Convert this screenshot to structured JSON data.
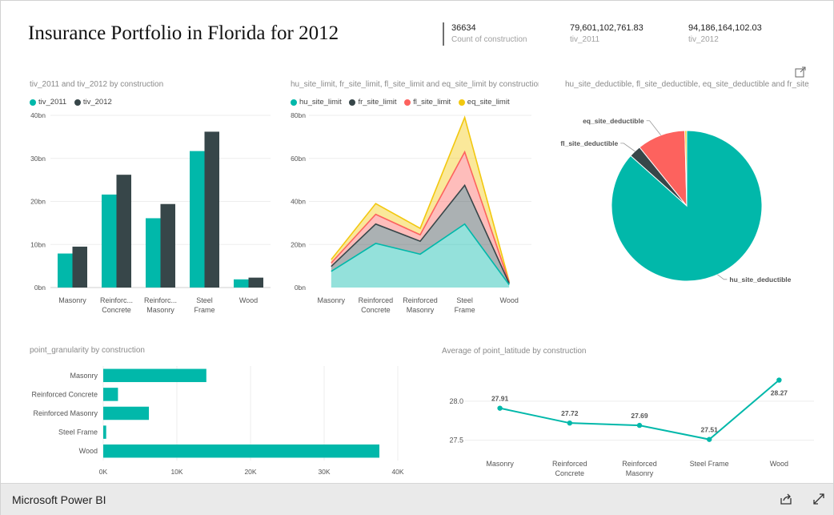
{
  "report": {
    "title": "Insurance Portfolio in Florida for 2012",
    "brand": "Microsoft Power BI"
  },
  "kpis": [
    {
      "value": "36634",
      "label": "Count of construction"
    },
    {
      "value": "79,601,102,761.83",
      "label": "tiv_2011"
    },
    {
      "value": "94,186,164,102.03",
      "label": "tiv_2012"
    }
  ],
  "colors": {
    "teal": "#01B8AA",
    "dark": "#374649",
    "red": "#FD625E",
    "yellow": "#F2C80F"
  },
  "icons": [
    "focus-mode-icon",
    "share-icon",
    "fullscreen-icon"
  ],
  "chart_data": [
    {
      "id": "tiv",
      "type": "bar",
      "title": "tiv_2011 and tiv_2012 by construction",
      "categories": [
        "Masonry",
        "Reinforced Concrete",
        "Reinforced Masonry",
        "Steel Frame",
        "Wood"
      ],
      "category_labels": [
        [
          "Masonry"
        ],
        [
          "Reinforc...",
          "Concrete"
        ],
        [
          "Reinforc...",
          "Masonry"
        ],
        [
          "Steel",
          "Frame"
        ],
        [
          "Wood"
        ]
      ],
      "series": [
        {
          "name": "tiv_2011",
          "color": "#01B8AA",
          "values": [
            7.9,
            21.6,
            16.1,
            31.7,
            1.9
          ]
        },
        {
          "name": "tiv_2012",
          "color": "#374649",
          "values": [
            9.5,
            26.2,
            19.4,
            36.2,
            2.3
          ]
        }
      ],
      "yticks": [
        "0bn",
        "10bn",
        "20bn",
        "30bn",
        "40bn"
      ],
      "ylim": [
        0,
        40
      ]
    },
    {
      "id": "limits",
      "type": "area",
      "stacked": true,
      "title": "hu_site_limit, fr_site_limit, fl_site_limit and eq_site_limit by construction",
      "categories": [
        "Masonry",
        "Reinforced Concrete",
        "Reinforced Masonry",
        "Steel Frame",
        "Wood"
      ],
      "category_labels": [
        [
          "Masonry"
        ],
        [
          "Reinforced",
          "Concrete"
        ],
        [
          "Reinforced",
          "Masonry"
        ],
        [
          "Steel",
          "Frame"
        ],
        [
          "Wood"
        ]
      ],
      "series": [
        {
          "name": "hu_site_limit",
          "color": "#01B8AA",
          "values": [
            7.5,
            20.5,
            15.5,
            29.5,
            1.3
          ]
        },
        {
          "name": "fr_site_limit",
          "color": "#374649",
          "values": [
            2.3,
            9,
            6,
            18,
            0.6
          ]
        },
        {
          "name": "fl_site_limit",
          "color": "#FD625E",
          "values": [
            1.6,
            4.5,
            3,
            15.5,
            0.4
          ]
        },
        {
          "name": "eq_site_limit",
          "color": "#F2C80F",
          "values": [
            1.6,
            5,
            3,
            16,
            0.4
          ]
        }
      ],
      "yticks": [
        "0bn",
        "20bn",
        "40bn",
        "60bn",
        "80bn"
      ],
      "ylim": [
        0,
        80
      ]
    },
    {
      "id": "deductible",
      "type": "pie",
      "title": "hu_site_deductible, fl_site_deductible, eq_site_deductible and fr_site_d...",
      "slices": [
        {
          "name": "hu_site_deductible",
          "color": "#01B8AA",
          "value": 86.6,
          "label": "hu_site_deductible"
        },
        {
          "name": "fl_site_deductible",
          "color": "#374649",
          "value": 2.6,
          "label": "fl_site_deductible"
        },
        {
          "name": "eq_site_deductible",
          "color": "#FD625E",
          "value": 10.4,
          "label": "eq_site_deductible"
        },
        {
          "name": "fr_site_deductible",
          "color": "#F2C80F",
          "value": 0.4,
          "label": ""
        }
      ]
    },
    {
      "id": "granularity",
      "type": "bar",
      "orientation": "horizontal",
      "title": "point_granularity by construction",
      "categories": [
        "Masonry",
        "Reinforced Concrete",
        "Reinforced Masonry",
        "Steel Frame",
        "Wood"
      ],
      "values": [
        14000,
        2000,
        6200,
        400,
        37500
      ],
      "color": "#01B8AA",
      "xticks": [
        "0K",
        "10K",
        "20K",
        "30K",
        "40K"
      ],
      "xlim": [
        0,
        40000
      ]
    },
    {
      "id": "latitude",
      "type": "line",
      "title": "Average of point_latitude by construction",
      "categories": [
        "Masonry",
        "Reinforced Concrete",
        "Reinforced Masonry",
        "Steel Frame",
        "Wood"
      ],
      "category_labels": [
        [
          "Masonry"
        ],
        [
          "Reinforced",
          "Concrete"
        ],
        [
          "Reinforced",
          "Masonry"
        ],
        [
          "Steel Frame"
        ],
        [
          "Wood"
        ]
      ],
      "values": [
        27.91,
        27.72,
        27.69,
        27.51,
        28.27
      ],
      "data_labels": [
        "27.91",
        "27.72",
        "27.69",
        "27.51",
        "28.27"
      ],
      "color": "#01B8AA",
      "yticks": [
        "27.5",
        "28.0"
      ],
      "ylim": [
        27.25,
        28.45
      ]
    }
  ]
}
